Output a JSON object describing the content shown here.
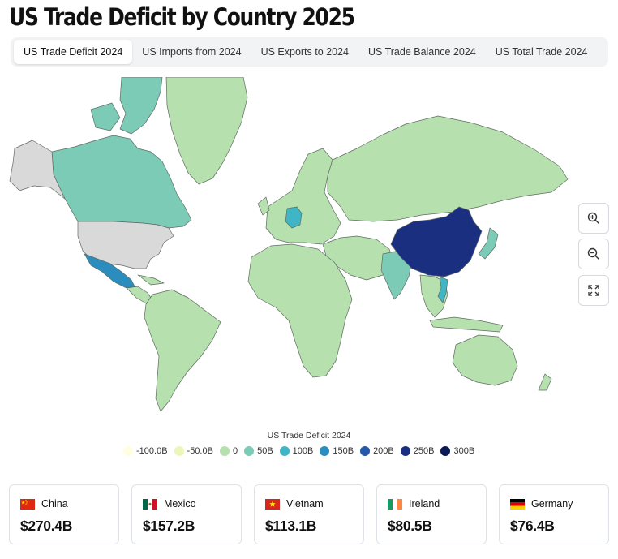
{
  "title": "US Trade Deficit by Country 2025",
  "tabs": [
    {
      "label": "US Trade Deficit 2024",
      "active": true
    },
    {
      "label": "US Imports from 2024",
      "active": false
    },
    {
      "label": "US Exports to 2024",
      "active": false
    },
    {
      "label": "US Trade Balance 2024",
      "active": false
    },
    {
      "label": "US Total Trade 2024",
      "active": false
    }
  ],
  "map": {
    "region": "World",
    "no_data_color": "#d9d9d9",
    "border_color": "#5f6b63",
    "zoom_controls": [
      "zoom-in-icon",
      "zoom-out-icon",
      "fullscreen-icon"
    ],
    "shaded_regions": [
      {
        "region": "Russia / Northern Asia",
        "bucket": "0"
      },
      {
        "region": "Europe",
        "bucket": "0"
      },
      {
        "region": "Greenland",
        "bucket": "0"
      },
      {
        "region": "Africa",
        "bucket": "0"
      },
      {
        "region": "South America",
        "bucket": "0"
      },
      {
        "region": "Australia",
        "bucket": "0"
      },
      {
        "region": "Canada",
        "bucket": "50B"
      },
      {
        "region": "Mexico",
        "bucket": "150B"
      },
      {
        "region": "China",
        "bucket": "250B"
      },
      {
        "region": "Germany",
        "bucket": "100B"
      },
      {
        "region": "Vietnam",
        "bucket": "100B"
      },
      {
        "region": "India",
        "bucket": "50B"
      },
      {
        "region": "Japan",
        "bucket": "50B"
      },
      {
        "region": "United States",
        "bucket": "no data"
      },
      {
        "region": "Alaska",
        "bucket": "no data"
      }
    ]
  },
  "legend": {
    "title": "US Trade Deficit 2024",
    "items": [
      {
        "label": "-100.0B",
        "color": "#ffffe0"
      },
      {
        "label": "-50.0B",
        "color": "#eaf7b8"
      },
      {
        "label": "0",
        "color": "#b6e0ad"
      },
      {
        "label": "50B",
        "color": "#7ccbb7"
      },
      {
        "label": "100B",
        "color": "#40b5c5"
      },
      {
        "label": "150B",
        "color": "#2b8cbe"
      },
      {
        "label": "200B",
        "color": "#2558a6"
      },
      {
        "label": "250B",
        "color": "#1b2f81"
      },
      {
        "label": "300B",
        "color": "#0c1a55"
      }
    ]
  },
  "cards": [
    {
      "country": "China",
      "value": "$270.4B",
      "flag": "china-flag"
    },
    {
      "country": "Mexico",
      "value": "$157.2B",
      "flag": "mexico-flag"
    },
    {
      "country": "Vietnam",
      "value": "$113.1B",
      "flag": "vietnam-flag"
    },
    {
      "country": "Ireland",
      "value": "$80.5B",
      "flag": "ireland-flag"
    },
    {
      "country": "Germany",
      "value": "$76.4B",
      "flag": "germany-flag"
    }
  ]
}
